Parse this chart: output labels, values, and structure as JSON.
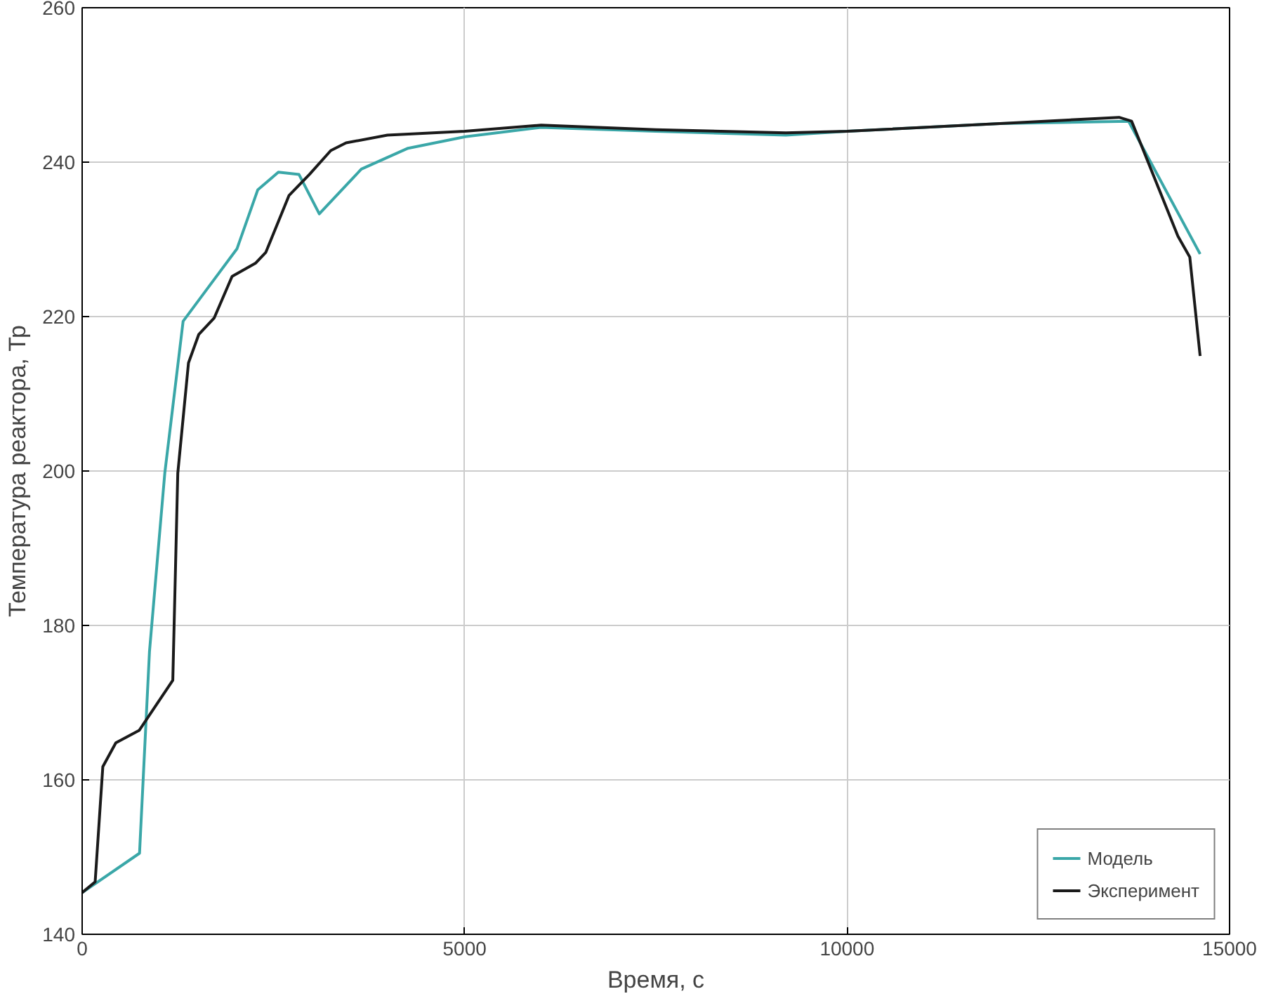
{
  "chart_data": {
    "type": "line",
    "xlabel": "Время, с",
    "ylabel": "Температура реактора, Тр",
    "xlim": [
      0,
      15000
    ],
    "ylim": [
      140,
      260
    ],
    "xticks": [
      0,
      5000,
      10000,
      15000
    ],
    "yticks": [
      140,
      160,
      180,
      200,
      220,
      240,
      260
    ],
    "grid": true,
    "legend": "bottom right",
    "series": [
      {
        "name": "Модель",
        "color": "#3aa7a8",
        "x": [
          0,
          750,
          880,
          1080,
          1320,
          1620,
          2025,
          2295,
          2565,
          2835,
          3100,
          3650,
          4260,
          5010,
          6000,
          7500,
          9200,
          10000,
          12000,
          13680,
          14615
        ],
        "values": [
          145.4,
          150.5,
          176.6,
          199.7,
          219.4,
          223.4,
          228.8,
          236.4,
          238.7,
          238.4,
          233.3,
          239.1,
          241.8,
          243.3,
          244.5,
          244,
          243.5,
          244,
          245,
          245.3,
          228.1
        ]
      },
      {
        "name": "Эксперимент",
        "color": "#1a1a1a",
        "x": [
          0,
          170,
          270,
          440,
          745,
          1185,
          1250,
          1390,
          1525,
          1725,
          1960,
          2265,
          2400,
          2705,
          2970,
          3250,
          3450,
          3990,
          5000,
          6000,
          7500,
          9200,
          10000,
          12000,
          13555,
          13720,
          14325,
          14480,
          14615
        ],
        "values": [
          145.4,
          146.8,
          161.7,
          164.8,
          166.4,
          172.9,
          199.7,
          214,
          217.7,
          219.8,
          225.2,
          226.9,
          228.3,
          235.7,
          238.4,
          241.5,
          242.5,
          243.5,
          244,
          244.8,
          244.2,
          243.8,
          244,
          245,
          245.8,
          245.3,
          230.4,
          227.7,
          214.9
        ]
      }
    ]
  }
}
